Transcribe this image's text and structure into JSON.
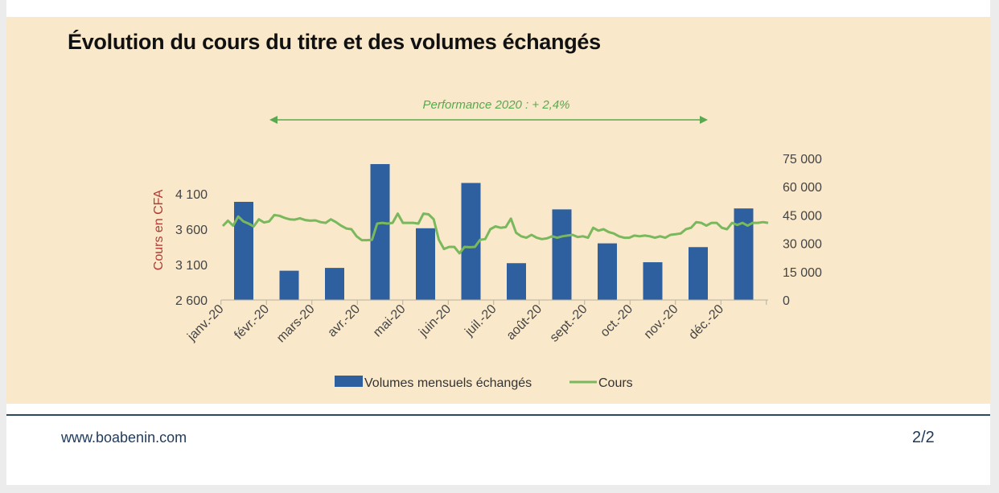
{
  "title": "Évolution du cours du titre et des volumes échangés",
  "footer": {
    "url": "www.boabenin.com",
    "page": "2/2"
  },
  "colors": {
    "volume": "#2e5f9e",
    "cours": "#79b85c",
    "axis_title": "#b23a34",
    "panel": "#f9e8c9"
  },
  "chart_data": {
    "type": "bar+line",
    "ylabel_left": "Cours en CFA",
    "ylim_left": [
      2600,
      4600
    ],
    "yticks_left": [
      "4 100",
      "3 600",
      "3 100",
      "2 600"
    ],
    "yticks_left_values": [
      4100,
      3600,
      3100,
      2600
    ],
    "ylim_right": [
      0,
      75000
    ],
    "yticks_right": [
      "75 000",
      "60 000",
      "45 000",
      "30 000",
      "15 000",
      "0"
    ],
    "yticks_right_values": [
      75000,
      60000,
      45000,
      30000,
      15000,
      0
    ],
    "categories": [
      "janv.-20",
      "févr.-20",
      "mars-20",
      "avr.-20",
      "mai-20",
      "juin-20",
      "juil.-20",
      "août-20",
      "sept.-20",
      "oct.-20",
      "nov.-20",
      "déc.-20"
    ],
    "annotation": "Performance 2020 : + 2,4%",
    "legend": {
      "volumes": "Volumes mensuels échangés",
      "cours": "Cours"
    },
    "volumes": {
      "name": "Volumes mensuels échangés",
      "values": [
        52000,
        15500,
        17000,
        72000,
        38000,
        62000,
        19500,
        48000,
        30000,
        20000,
        28000,
        48500
      ]
    },
    "cours": {
      "name": "Cours",
      "values": [
        3645,
        3720,
        3650,
        3780,
        3710,
        3680,
        3640,
        3740,
        3695,
        3710,
        3800,
        3790,
        3760,
        3740,
        3735,
        3755,
        3730,
        3720,
        3725,
        3700,
        3690,
        3740,
        3700,
        3650,
        3610,
        3600,
        3500,
        3445,
        3445,
        3450,
        3680,
        3690,
        3680,
        3690,
        3820,
        3690,
        3690,
        3690,
        3680,
        3820,
        3810,
        3740,
        3450,
        3320,
        3350,
        3350,
        3260,
        3350,
        3345,
        3350,
        3450,
        3460,
        3600,
        3640,
        3620,
        3630,
        3750,
        3550,
        3500,
        3480,
        3520,
        3480,
        3460,
        3470,
        3500,
        3480,
        3500,
        3510,
        3520,
        3490,
        3500,
        3480,
        3620,
        3580,
        3600,
        3560,
        3540,
        3500,
        3480,
        3480,
        3510,
        3500,
        3510,
        3500,
        3480,
        3500,
        3480,
        3520,
        3530,
        3540,
        3600,
        3620,
        3700,
        3690,
        3650,
        3690,
        3690,
        3620,
        3600,
        3690,
        3660,
        3690,
        3650,
        3690,
        3690,
        3700,
        3690
      ]
    }
  }
}
